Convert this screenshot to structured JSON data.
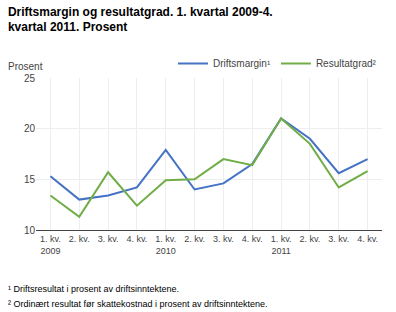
{
  "chart_data": {
    "type": "line",
    "title": "Driftsmargin og resultatgrad. 1. kvartal 2009-4. kvartal 2011. Prosent",
    "ylabel": "Prosent",
    "categories": [
      "1. kv.\n2009",
      "2. kv.",
      "3. kv.",
      "4. kv.",
      "1. kv.\n2010",
      "2. kv.",
      "3. kv.",
      "4. kv.",
      "1. kv.\n2011",
      "2. kv.",
      "3. kv.",
      "4. kv."
    ],
    "series": [
      {
        "name": "Driftsmargin¹",
        "color": "#4472C4",
        "values": [
          15.3,
          13.0,
          13.4,
          14.2,
          17.9,
          14.0,
          14.6,
          16.5,
          21.0,
          19.0,
          15.6,
          17.0
        ]
      },
      {
        "name": "Resultatgrad²",
        "color": "#70AD47",
        "values": [
          13.4,
          11.3,
          15.7,
          12.4,
          14.9,
          15.0,
          17.0,
          16.4,
          21.0,
          18.5,
          14.2,
          15.8
        ]
      }
    ],
    "ylim": [
      10,
      25
    ],
    "yticks": [
      10,
      15,
      20,
      25
    ],
    "grid": true,
    "legend": "top",
    "annotations": [
      "¹ Driftsresultat i prosent av driftsinntektene.",
      "² Ordinært resultat før skattekostnad i prosent av driftsinntektene."
    ]
  }
}
